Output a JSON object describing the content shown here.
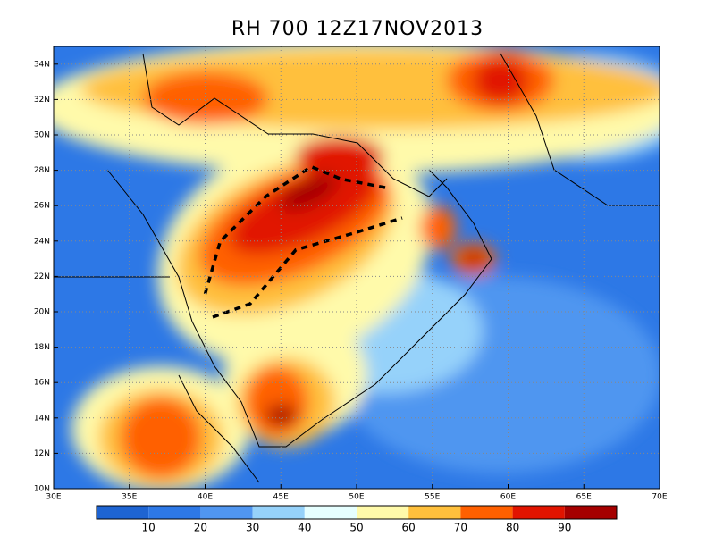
{
  "title": "RH 700 12Z17NOV2013",
  "map": {
    "lon_range": [
      30,
      70
    ],
    "lat_range": [
      10,
      35
    ],
    "lon_ticks": [
      {
        "value": 30,
        "label": "30E"
      },
      {
        "value": 35,
        "label": "35E"
      },
      {
        "value": 40,
        "label": "40E"
      },
      {
        "value": 45,
        "label": "45E"
      },
      {
        "value": 50,
        "label": "50E"
      },
      {
        "value": 55,
        "label": "55E"
      },
      {
        "value": 60,
        "label": "60E"
      },
      {
        "value": 65,
        "label": "65E"
      },
      {
        "value": 70,
        "label": "70E"
      }
    ],
    "lat_ticks": [
      {
        "value": 10,
        "label": "10N"
      },
      {
        "value": 12,
        "label": "12N"
      },
      {
        "value": 14,
        "label": "14N"
      },
      {
        "value": 16,
        "label": "16N"
      },
      {
        "value": 18,
        "label": "18N"
      },
      {
        "value": 20,
        "label": "20N"
      },
      {
        "value": 22,
        "label": "22N"
      },
      {
        "value": 24,
        "label": "24N"
      },
      {
        "value": 26,
        "label": "26N"
      },
      {
        "value": 28,
        "label": "28N"
      },
      {
        "value": 30,
        "label": "30N"
      },
      {
        "value": 32,
        "label": "32N"
      },
      {
        "value": 34,
        "label": "34N"
      }
    ],
    "grid": true
  },
  "colorbar": {
    "levels": [
      10,
      20,
      30,
      40,
      50,
      60,
      70,
      80,
      90
    ],
    "colors": [
      "#1e64d2",
      "#2d78e6",
      "#5096f0",
      "#96d2fa",
      "#e6ffff",
      "#fffaaa",
      "#ffc03c",
      "#ff6000",
      "#e11400",
      "#a50000"
    ]
  }
}
